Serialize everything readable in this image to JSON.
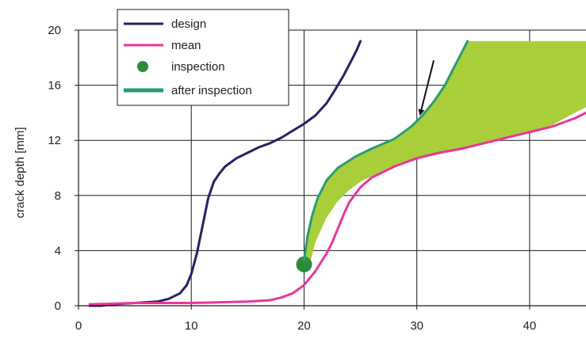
{
  "chart_data": {
    "type": "line",
    "title": "",
    "xlabel": "",
    "ylabel": "crack depth [mm]",
    "xlim": [
      0,
      45
    ],
    "ylim": [
      0,
      20
    ],
    "xticks": [
      0,
      10,
      20,
      30,
      40
    ],
    "yticks": [
      0,
      4,
      8,
      12,
      16,
      20
    ],
    "grid": true,
    "legend_position": "top-left",
    "series": [
      {
        "name": "design",
        "color": "#2d1e63",
        "x": [
          1.0,
          2.0,
          3.0,
          5.0,
          7.0,
          8.0,
          9.0,
          9.6,
          10.0,
          10.5,
          11.0,
          11.5,
          12.0,
          12.5,
          13.0,
          14.0,
          15.0,
          16.0,
          17.0,
          18.0,
          19.0,
          20.0,
          21.0,
          22.0,
          22.7,
          23.5,
          24.2,
          24.7,
          25.0
        ],
        "y": [
          0.0,
          0.0,
          0.1,
          0.2,
          0.3,
          0.5,
          0.9,
          1.5,
          2.3,
          3.8,
          5.8,
          7.8,
          9.0,
          9.6,
          10.1,
          10.7,
          11.1,
          11.5,
          11.8,
          12.2,
          12.7,
          13.2,
          13.8,
          14.7,
          15.6,
          16.7,
          17.8,
          18.6,
          19.2
        ]
      },
      {
        "name": "mean",
        "color": "#e8369a",
        "x": [
          1.0,
          5.0,
          10.0,
          15.0,
          17.0,
          18.0,
          19.0,
          20.0,
          21.0,
          22.0,
          22.5,
          23.0,
          23.5,
          24.0,
          25.0,
          26.0,
          28.0,
          30.0,
          32.0,
          34.0,
          36.0,
          38.0,
          40.0,
          42.0,
          44.0,
          45.0
        ],
        "y": [
          0.1,
          0.2,
          0.2,
          0.3,
          0.4,
          0.6,
          0.9,
          1.5,
          2.5,
          3.8,
          4.6,
          5.6,
          6.6,
          7.5,
          8.6,
          9.3,
          10.1,
          10.7,
          11.1,
          11.4,
          11.8,
          12.2,
          12.6,
          13.0,
          13.6,
          14.0
        ]
      },
      {
        "name": "inspection",
        "color": "#2e8b3e",
        "x": [
          20.0
        ],
        "y": [
          3.0
        ]
      },
      {
        "name": "after inspection",
        "color": "#2a9c73",
        "x": [
          20.0,
          20.3,
          20.7,
          21.2,
          22.0,
          23.0,
          24.5,
          26.0,
          28.0,
          29.5,
          30.5,
          31.5,
          32.5,
          33.3,
          34.0,
          34.5
        ],
        "y": [
          3.3,
          5.0,
          6.5,
          7.8,
          9.1,
          10.0,
          10.8,
          11.4,
          12.1,
          13.0,
          13.8,
          14.8,
          16.0,
          17.3,
          18.4,
          19.2
        ]
      }
    ],
    "band": {
      "color": "#a8cf3a",
      "upper_x": [
        20.0,
        20.3,
        20.7,
        21.2,
        22.0,
        23.0,
        24.5,
        26.0,
        28.0,
        29.5,
        30.5,
        31.5,
        32.5,
        33.3,
        34.0,
        34.5,
        45.0
      ],
      "upper_y": [
        3.3,
        5.0,
        6.5,
        7.8,
        9.1,
        10.0,
        10.8,
        11.4,
        12.1,
        13.0,
        13.8,
        14.8,
        16.0,
        17.3,
        18.4,
        19.2,
        19.2
      ],
      "lower_x": [
        20.5,
        21.0,
        22.0,
        23.0,
        24.0,
        25.0,
        26.0,
        28.0,
        30.0,
        32.0,
        34.0,
        36.0,
        38.0,
        40.0,
        42.0,
        44.0,
        45.0
      ],
      "lower_y": [
        3.0,
        4.6,
        6.4,
        7.6,
        8.4,
        9.0,
        9.4,
        10.1,
        10.7,
        11.1,
        11.4,
        11.8,
        12.2,
        12.6,
        13.1,
        14.0,
        14.4
      ]
    },
    "annotation_arrow": {
      "from": [
        31.5,
        17.8
      ],
      "to": [
        30.3,
        13.9
      ]
    }
  }
}
